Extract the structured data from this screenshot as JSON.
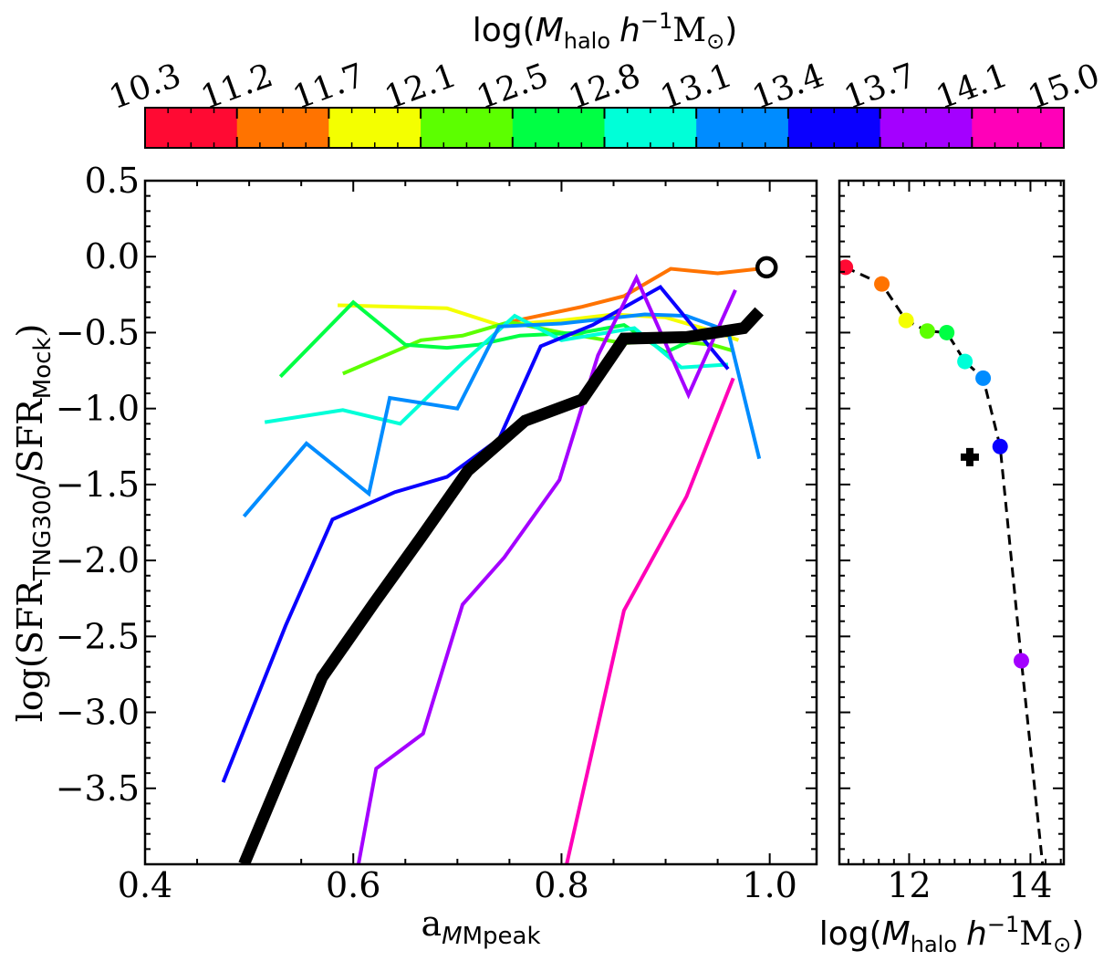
{
  "chart_data": [
    {
      "type": "colorbar",
      "label_main": "log(",
      "label_M": "M",
      "label_sub": "halo",
      "label_h": "h",
      "label_exp": "−1",
      "label_unit": "M",
      "label_sun": "⊙",
      "label_close": ")",
      "ticks": [
        "10.3",
        "11.2",
        "11.7",
        "12.1",
        "12.5",
        "12.8",
        "13.1",
        "13.4",
        "13.7",
        "14.1",
        "15.0"
      ],
      "colors": [
        "#ff0a33",
        "#ff7300",
        "#f4ff00",
        "#5cff00",
        "#00ff44",
        "#00ffd8",
        "#008cff",
        "#0a00ff",
        "#a400ff",
        "#ff00b8"
      ]
    },
    {
      "type": "line",
      "ylabel_a": "log(SFR",
      "ylabel_sub1": "TNG300",
      "ylabel_b": "/SFR",
      "ylabel_sub2": "Mock",
      "ylabel_c": ")",
      "xlabel_a": "a",
      "xlabel_sub": "Mpeak",
      "xlim": [
        0.4,
        1.045
      ],
      "ylim": [
        -4.0,
        0.5
      ],
      "xticks": [
        "0.4",
        "0.6",
        "0.8",
        "1.0"
      ],
      "yticks": [
        "0.5",
        "0.0",
        "−0.5",
        "−1.0",
        "−1.5",
        "−2.0",
        "−2.5",
        "−3.0",
        "−3.5"
      ],
      "ytick_values": [
        0.5,
        0.0,
        -0.5,
        -1.0,
        -1.5,
        -2.0,
        -2.5,
        -3.0,
        -3.5
      ],
      "xtick_values": [
        0.4,
        0.6,
        0.8,
        1.0
      ],
      "series": [
        {
          "color": "#ff7300",
          "width": 4,
          "x": [
            0.75,
            0.82,
            0.86,
            0.905,
            0.95,
            0.99
          ],
          "y": [
            -0.43,
            -0.33,
            -0.26,
            -0.08,
            -0.11,
            -0.08
          ]
        },
        {
          "color": "#f4ff00",
          "width": 4,
          "x": [
            0.585,
            0.64,
            0.69,
            0.74,
            0.8,
            0.85,
            0.9,
            0.95,
            0.97
          ],
          "y": [
            -0.32,
            -0.33,
            -0.34,
            -0.45,
            -0.42,
            -0.38,
            -0.4,
            -0.5,
            -0.55
          ]
        },
        {
          "color": "#5cff00",
          "width": 4,
          "x": [
            0.59,
            0.665,
            0.705,
            0.75,
            0.8,
            0.86,
            0.9,
            0.945,
            0.965
          ],
          "y": [
            -0.77,
            -0.55,
            -0.52,
            -0.43,
            -0.5,
            -0.57,
            -0.55,
            -0.58,
            -0.62
          ]
        },
        {
          "color": "#00ff44",
          "width": 4,
          "x": [
            0.53,
            0.6,
            0.65,
            0.69,
            0.72,
            0.76,
            0.82,
            0.86,
            0.9,
            0.95,
            0.97
          ],
          "y": [
            -0.79,
            -0.3,
            -0.58,
            -0.6,
            -0.58,
            -0.52,
            -0.5,
            -0.45,
            -0.63,
            -0.47,
            -0.48
          ]
        },
        {
          "color": "#00ffd8",
          "width": 4,
          "x": [
            0.515,
            0.59,
            0.645,
            0.705,
            0.755,
            0.8,
            0.87,
            0.915,
            0.96
          ],
          "y": [
            -1.09,
            -1.01,
            -1.1,
            -0.7,
            -0.39,
            -0.55,
            -0.47,
            -0.73,
            -0.71
          ]
        },
        {
          "color": "#008cff",
          "width": 4,
          "x": [
            0.495,
            0.555,
            0.615,
            0.635,
            0.7,
            0.74,
            0.8,
            0.88,
            0.92,
            0.96,
            0.99
          ],
          "y": [
            -1.71,
            -1.23,
            -1.56,
            -0.93,
            -1.0,
            -0.46,
            -0.44,
            -0.38,
            -0.39,
            -0.49,
            -1.33
          ]
        },
        {
          "color": "#0a00ff",
          "width": 4,
          "x": [
            0.475,
            0.535,
            0.58,
            0.64,
            0.69,
            0.74,
            0.78,
            0.83,
            0.895,
            0.96
          ],
          "y": [
            -3.46,
            -2.43,
            -1.73,
            -1.55,
            -1.45,
            -1.2,
            -0.59,
            -0.45,
            -0.2,
            -0.74
          ]
        },
        {
          "color": "#a400ff",
          "width": 4,
          "x": [
            0.605,
            0.622,
            0.667,
            0.705,
            0.745,
            0.798,
            0.835,
            0.872,
            0.922,
            0.967
          ],
          "y": [
            -4.0,
            -3.37,
            -3.14,
            -2.29,
            -1.98,
            -1.47,
            -0.65,
            -0.14,
            -0.91,
            -0.22
          ]
        },
        {
          "color": "#ff00b8",
          "width": 4,
          "x": [
            0.805,
            0.86,
            0.92,
            0.965
          ],
          "y": [
            -4.0,
            -2.33,
            -1.58,
            -0.8
          ]
        },
        {
          "color": "#000000",
          "width": 13,
          "x": [
            0.495,
            0.57,
            0.62,
            0.665,
            0.71,
            0.765,
            0.82,
            0.86,
            0.92,
            0.975,
            0.99
          ],
          "y": [
            -4.0,
            -2.77,
            -2.28,
            -1.85,
            -1.41,
            -1.08,
            -0.94,
            -0.54,
            -0.53,
            -0.47,
            -0.36
          ]
        }
      ],
      "marker": {
        "x": 0.997,
        "y": -0.07,
        "style": "open-circle"
      }
    },
    {
      "type": "scatter",
      "xlabel_a": "log(",
      "xlabel_M": "M",
      "xlabel_sub": "halo",
      "xlabel_h": "h",
      "xlabel_exp": "−1",
      "xlabel_unit": "M",
      "xlabel_sun": "⊙",
      "xlabel_close": ")",
      "xlim": [
        10.85,
        14.55
      ],
      "ylim": [
        -4.0,
        0.5
      ],
      "xticks": [
        "12",
        "14"
      ],
      "xtick_values": [
        12,
        14
      ],
      "points": [
        {
          "x": 10.95,
          "y": -0.07,
          "color": "#ff0a33"
        },
        {
          "x": 11.55,
          "y": -0.18,
          "color": "#ff7300"
        },
        {
          "x": 11.95,
          "y": -0.42,
          "color": "#f4ff00"
        },
        {
          "x": 12.3,
          "y": -0.49,
          "color": "#5cff00"
        },
        {
          "x": 12.62,
          "y": -0.5,
          "color": "#00ff44"
        },
        {
          "x": 12.92,
          "y": -0.69,
          "color": "#00ffd8"
        },
        {
          "x": 13.22,
          "y": -0.8,
          "color": "#008cff"
        },
        {
          "x": 13.5,
          "y": -1.25,
          "color": "#0a00ff"
        },
        {
          "x": 13.85,
          "y": -2.66,
          "color": "#a400ff"
        }
      ],
      "dashed_x": [
        10.95,
        11.55,
        11.95,
        12.3,
        12.62,
        12.92,
        13.22,
        13.5,
        13.85,
        14.2
      ],
      "dashed_y": [
        -0.07,
        -0.18,
        -0.42,
        -0.49,
        -0.5,
        -0.69,
        -0.8,
        -1.25,
        -2.66,
        -4.0
      ],
      "cross": {
        "x": 13.0,
        "y": -1.32
      }
    }
  ]
}
